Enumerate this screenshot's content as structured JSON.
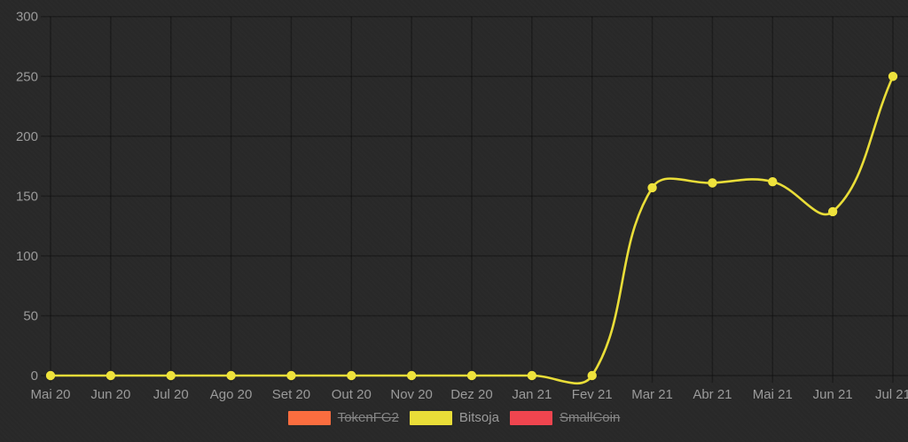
{
  "chart_data": {
    "type": "line",
    "categories": [
      "Mai 20",
      "Jun 20",
      "Jul 20",
      "Ago 20",
      "Set 20",
      "Out 20",
      "Nov 20",
      "Dez 20",
      "Jan 21",
      "Fev 21",
      "Mar 21",
      "Abr 21",
      "Mai 21",
      "Jun 21",
      "Jul 21"
    ],
    "series": [
      {
        "name": "Bitsoja",
        "color": "#e9dd38",
        "values": [
          0,
          0,
          0,
          0,
          0,
          0,
          0,
          0,
          0,
          0,
          157,
          161,
          162,
          137,
          250
        ]
      }
    ],
    "title": "",
    "xlabel": "",
    "ylabel": "",
    "ylim": [
      0,
      300
    ],
    "yticks": [
      0,
      50,
      100,
      150,
      200,
      250,
      300
    ],
    "grid": true,
    "line_tension": 0.4,
    "legend_position": "bottom"
  },
  "legend": {
    "items": [
      {
        "label": "TokenFG2",
        "color": "#fb6d3f",
        "disabled": true
      },
      {
        "label": "Bitsoja",
        "color": "#e9dd38",
        "disabled": false
      },
      {
        "label": "SmallCoin",
        "color": "#f0454f",
        "disabled": true
      }
    ]
  },
  "colors": {
    "background": "#282828",
    "gridline": "rgba(0,0,0,0.30)",
    "axis_text": "#9a9a9a",
    "series_line": "#e9dd38",
    "point_fill": "#eee23c"
  }
}
